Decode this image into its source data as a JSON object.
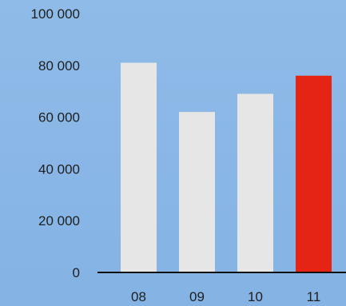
{
  "chart_data": {
    "type": "bar",
    "title": "",
    "xlabel": "",
    "ylabel": "",
    "categories": [
      "08",
      "09",
      "10",
      "11"
    ],
    "values": [
      81000,
      62000,
      69000,
      76000
    ],
    "ylim": [
      0,
      100000
    ],
    "yticks": [
      {
        "value": 0,
        "label": "0"
      },
      {
        "value": 20000,
        "label": "20 000"
      },
      {
        "value": 40000,
        "label": "40 000"
      },
      {
        "value": 60000,
        "label": "60 000"
      },
      {
        "value": 80000,
        "label": "80 000"
      },
      {
        "value": 100000,
        "label": "100 000"
      }
    ],
    "grid": false,
    "legend": "none",
    "colors": {
      "default_bar": "#e6e6e6",
      "highlight_bar": "#e52414",
      "axis": "#111111",
      "text": "#1f1f1f",
      "background": "#8ab7e6"
    },
    "highlight_index": 3
  }
}
